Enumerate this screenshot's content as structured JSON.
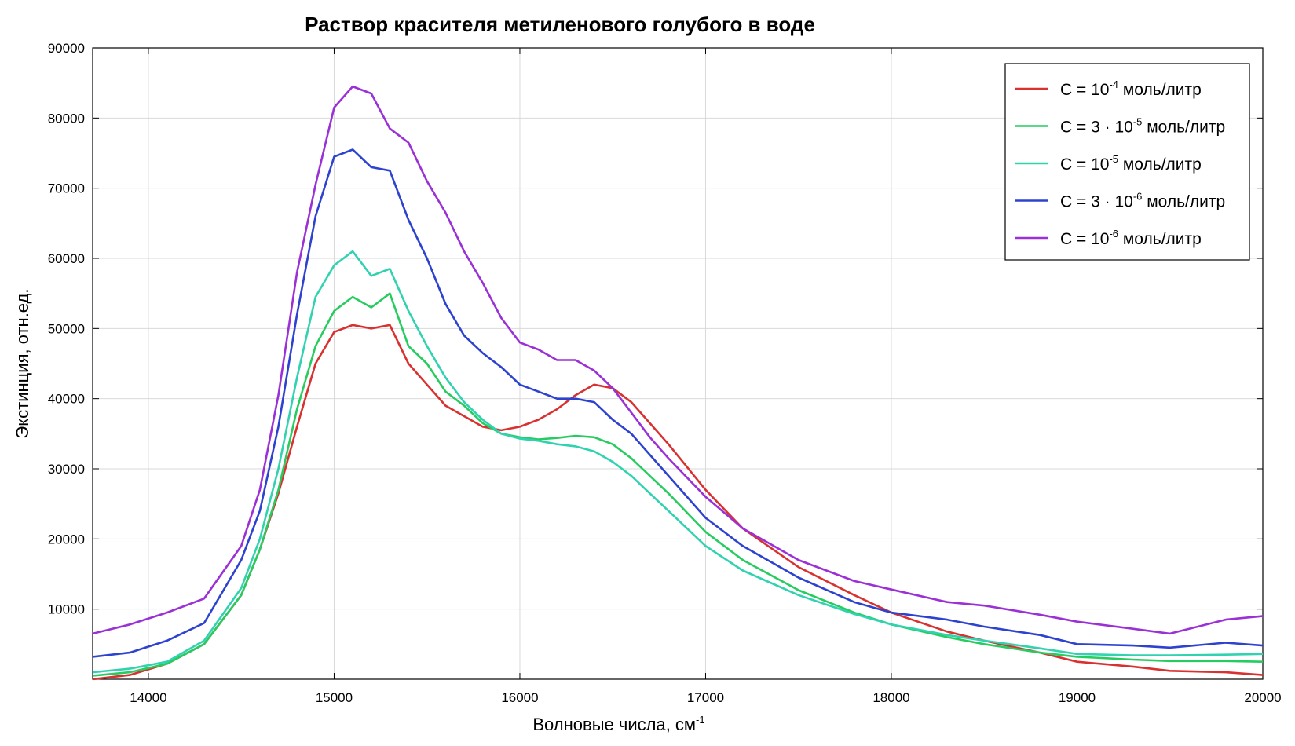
{
  "chart_data": {
    "type": "line",
    "title": "Раствор красителя метиленового голубого в воде",
    "xlabel": "Волновые числа, см",
    "xlabel_sup": "-1",
    "ylabel": "Экстинция, отн.ед.",
    "xlim": [
      13700,
      20000
    ],
    "ylim": [
      0,
      90000
    ],
    "grid": true,
    "legend_position": "top-right",
    "x_ticks": [
      14000,
      15000,
      16000,
      17000,
      18000,
      19000,
      20000
    ],
    "x_tick_labels": [
      "14000",
      "15000",
      "16000",
      "17000",
      "18000",
      "19000",
      "20000"
    ],
    "y_ticks": [
      10000,
      20000,
      30000,
      40000,
      50000,
      60000,
      70000,
      80000,
      90000
    ],
    "y_tick_labels": [
      "10000",
      "20000",
      "30000",
      "40000",
      "50000",
      "60000",
      "70000",
      "80000",
      "90000"
    ],
    "x": [
      13700,
      13900,
      14100,
      14300,
      14500,
      14600,
      14700,
      14800,
      14900,
      15000,
      15100,
      15200,
      15300,
      15400,
      15500,
      15600,
      15700,
      15800,
      15900,
      16000,
      16100,
      16200,
      16300,
      16400,
      16500,
      16600,
      16700,
      16800,
      17000,
      17200,
      17500,
      17800,
      18000,
      18300,
      18500,
      18800,
      19000,
      19300,
      19500,
      19800,
      20000
    ],
    "series": [
      {
        "name": "C = 10-4 моль/литр",
        "legend_parts": [
          "C = 10",
          "-4",
          " моль/литр"
        ],
        "color": "#d93030",
        "values": [
          0,
          600,
          2200,
          5000,
          12000,
          18500,
          26500,
          36000,
          45000,
          49500,
          50500,
          50000,
          50500,
          45000,
          42000,
          39000,
          37500,
          36000,
          35500,
          36000,
          37000,
          38500,
          40500,
          42000,
          41500,
          39500,
          36500,
          33500,
          27000,
          21500,
          16000,
          12000,
          9500,
          6800,
          5500,
          3800,
          2500,
          1800,
          1200,
          1000,
          600
        ]
      },
      {
        "name": "C = 3 · 10-5 моль/литр",
        "legend_parts": [
          "C = 3 · 10",
          "-5",
          " моль/литр"
        ],
        "color": "#27cc60",
        "values": [
          500,
          1000,
          2200,
          5000,
          12000,
          18500,
          27000,
          38500,
          47500,
          52500,
          54500,
          53000,
          55000,
          47500,
          45000,
          41000,
          39000,
          36500,
          35000,
          34500,
          34200,
          34400,
          34700,
          34500,
          33500,
          31500,
          29000,
          26500,
          21000,
          17000,
          12700,
          9500,
          7800,
          6000,
          5000,
          3800,
          3200,
          2800,
          2600,
          2600,
          2500
        ]
      },
      {
        "name": "C = 10-5 моль/литр",
        "legend_parts": [
          "C = 10",
          "-5",
          " моль/литр"
        ],
        "color": "#30d2b0",
        "values": [
          1000,
          1500,
          2500,
          5500,
          13000,
          20000,
          30000,
          43000,
          54500,
          59000,
          61000,
          57500,
          58500,
          52500,
          47500,
          43000,
          39500,
          37000,
          35000,
          34300,
          34000,
          33500,
          33200,
          32500,
          31000,
          29000,
          26500,
          24000,
          19000,
          15500,
          12000,
          9300,
          7800,
          6300,
          5500,
          4400,
          3600,
          3400,
          3400,
          3500,
          3600
        ]
      },
      {
        "name": "C = 3 · 10-6 моль/литр",
        "legend_parts": [
          "C = 3 · 10",
          "-6",
          " моль/литр"
        ],
        "color": "#2d43d0",
        "values": [
          3200,
          3800,
          5500,
          8000,
          17000,
          24000,
          36000,
          52000,
          66000,
          74500,
          75500,
          73000,
          72500,
          65500,
          60000,
          53500,
          49000,
          46500,
          44500,
          42000,
          41000,
          40000,
          40000,
          39500,
          37000,
          35000,
          32000,
          29000,
          23000,
          19000,
          14500,
          11000,
          9500,
          8500,
          7500,
          6300,
          5000,
          4800,
          4500,
          5200,
          4800
        ]
      },
      {
        "name": "C = 10-6 моль/литр",
        "legend_parts": [
          "C = 10",
          "-6",
          " моль/литр"
        ],
        "color": "#9b30d6",
        "values": [
          6500,
          7800,
          9500,
          11500,
          19000,
          27000,
          40500,
          58000,
          70500,
          81500,
          84500,
          83500,
          78500,
          76500,
          71000,
          66500,
          61000,
          56500,
          51500,
          48000,
          47000,
          45500,
          45500,
          44000,
          41500,
          38000,
          34500,
          31500,
          26000,
          21500,
          17000,
          14000,
          12800,
          11000,
          10500,
          9200,
          8200,
          7200,
          6500,
          8500,
          9000
        ]
      }
    ]
  }
}
